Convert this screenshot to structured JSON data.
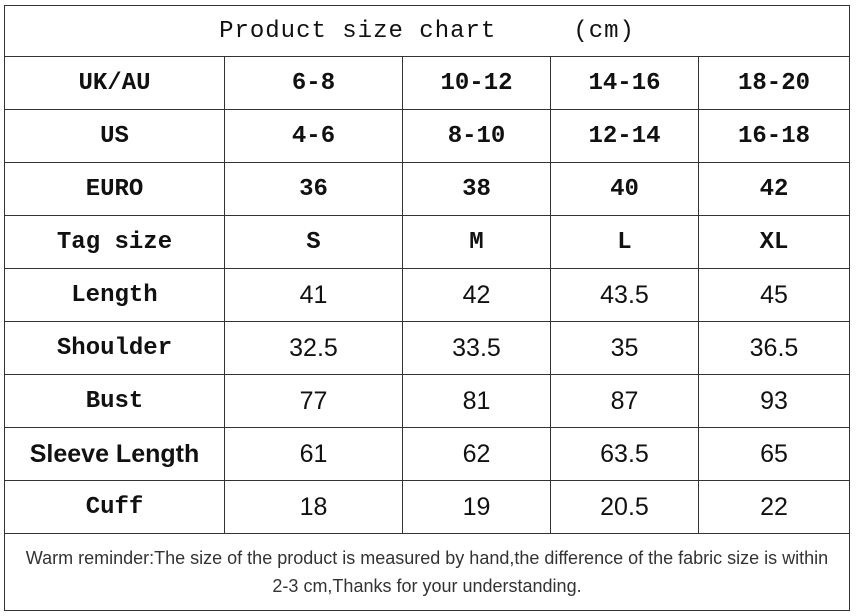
{
  "table": {
    "title": "Product size chart     (cm)",
    "rows": [
      [
        "UK/AU",
        "6-8",
        "10-12",
        "14-16",
        "18-20"
      ],
      [
        "US",
        "4-6",
        "8-10",
        "12-14",
        "16-18"
      ],
      [
        "EURO",
        "36",
        "38",
        "40",
        "42"
      ],
      [
        "Tag size",
        "S",
        "M",
        "L",
        "XL"
      ],
      [
        "Length",
        "41",
        "42",
        "43.5",
        "45"
      ],
      [
        "Shoulder",
        "32.5",
        "33.5",
        "35",
        "36.5"
      ],
      [
        "Bust",
        "77",
        "81",
        "87",
        "93"
      ],
      [
        "Sleeve Length",
        "61",
        "62",
        "63.5",
        "65"
      ],
      [
        "Cuff",
        "18",
        "19",
        "20.5",
        "22"
      ]
    ],
    "note": "Warm reminder:The size of the product is measured by hand,the difference of the fabric size is within 2-3 cm,Thanks for your understanding."
  }
}
